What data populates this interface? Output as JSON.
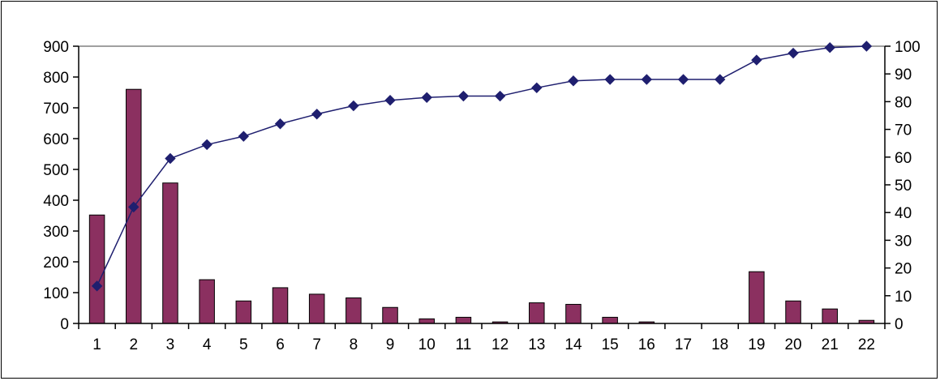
{
  "chart_data": {
    "type": "bar+line",
    "title": "",
    "xlabel": "",
    "ylabel": "",
    "categories": [
      "1",
      "2",
      "3",
      "4",
      "5",
      "6",
      "7",
      "8",
      "9",
      "10",
      "11",
      "12",
      "13",
      "14",
      "15",
      "16",
      "17",
      "18",
      "19",
      "20",
      "21",
      "22"
    ],
    "series": [
      {
        "type": "bar",
        "axis": "left",
        "color": "#8B3060",
        "values": [
          352,
          760,
          456,
          142,
          73,
          116,
          95,
          83,
          52,
          15,
          20,
          5,
          67,
          62,
          20,
          5,
          0,
          0,
          168,
          73,
          47,
          10
        ]
      },
      {
        "type": "line",
        "axis": "right",
        "color": "#1F1F6F",
        "marker": "diamond",
        "values": [
          13.5,
          42,
          59.5,
          64.5,
          67.5,
          72,
          75.5,
          78.5,
          80.5,
          81.5,
          82,
          82,
          85,
          87.5,
          88,
          88,
          88,
          88,
          95,
          97.5,
          99.5,
          100
        ]
      }
    ],
    "y_left": {
      "min": 0,
      "max": 900,
      "ticks": [
        0,
        100,
        200,
        300,
        400,
        500,
        600,
        700,
        800,
        900
      ]
    },
    "y_right": {
      "min": 0,
      "max": 100,
      "ticks": [
        0,
        10,
        20,
        30,
        40,
        50,
        60,
        70,
        80,
        90,
        100
      ]
    },
    "grid": false,
    "legend": "none"
  }
}
